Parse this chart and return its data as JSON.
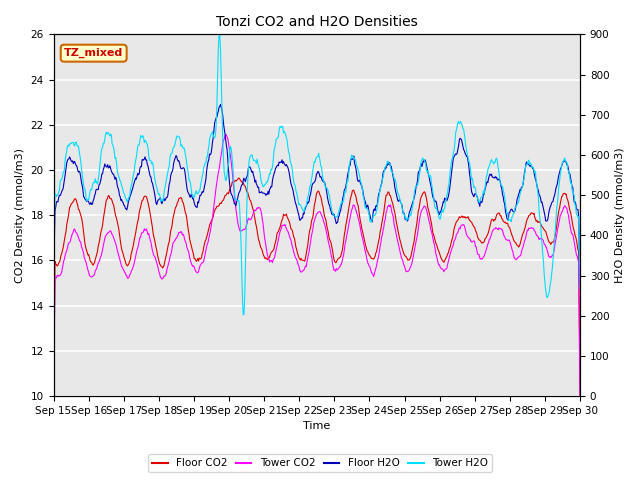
{
  "title": "Tonzi CO2 and H2O Densities",
  "xlabel": "Time",
  "ylabel_left": "CO2 Density (mmol/m3)",
  "ylabel_right": "H2O Density (mmol/m3)",
  "annotation_text": "TZ_mixed",
  "annotation_color": "#cc0000",
  "annotation_bg": "#ffffcc",
  "annotation_border": "#cc6600",
  "xlim_days": [
    0,
    15
  ],
  "ylim_left": [
    10,
    26
  ],
  "ylim_right": [
    0,
    900
  ],
  "yticks_left": [
    10,
    12,
    14,
    16,
    18,
    20,
    22,
    24,
    26
  ],
  "yticks_right": [
    0,
    100,
    200,
    300,
    400,
    500,
    600,
    700,
    800,
    900
  ],
  "xtick_labels": [
    "Sep 15",
    "Sep 16",
    "Sep 17",
    "Sep 18",
    "Sep 19",
    "Sep 20",
    "Sep 21",
    "Sep 22",
    "Sep 23",
    "Sep 24",
    "Sep 25",
    "Sep 26",
    "Sep 27",
    "Sep 28",
    "Sep 29",
    "Sep 30"
  ],
  "floor_co2_color": "#dd0000",
  "tower_co2_color": "#ff00ff",
  "floor_h2o_color": "#0000bb",
  "tower_h2o_color": "#00ddff",
  "legend_labels": [
    "Floor CO2",
    "Tower CO2",
    "Floor H2O",
    "Tower H2O"
  ],
  "bg_color": "#e8e8e8",
  "grid_color": "#ffffff",
  "linewidth": 0.8
}
